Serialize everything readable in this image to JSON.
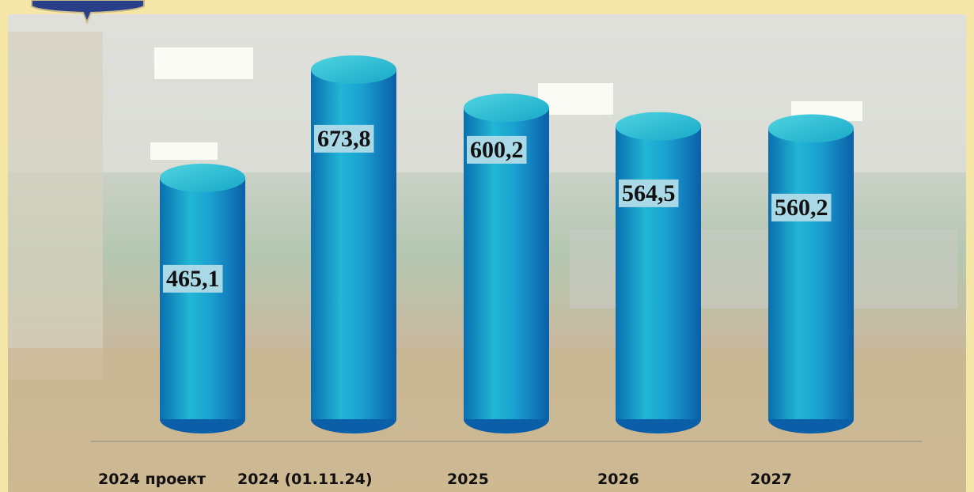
{
  "chart_data": {
    "type": "bar",
    "categories": [
      "2024 проект",
      "2024 (01.11.24)",
      "2025",
      "2026",
      "2027"
    ],
    "values": [
      465.1,
      673.8,
      600.2,
      564.5,
      560.2
    ],
    "value_labels": [
      "465,1",
      "673,8",
      "600,2",
      "564,5",
      "560,2"
    ],
    "color": "#1aa7c9"
  }
}
